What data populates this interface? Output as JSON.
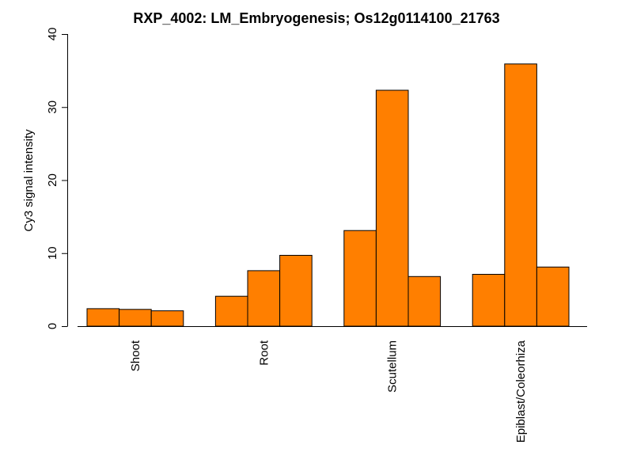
{
  "chart_data": {
    "type": "bar",
    "title": "RXP_4002: LM_Embryogenesis; Os12g0114100_21763",
    "xlabel": "",
    "ylabel": "Cy3 signal intensity",
    "ylim": [
      0,
      40
    ],
    "yticks": [
      0,
      10,
      20,
      30,
      40
    ],
    "categories": [
      "Shoot",
      "Root",
      "Scutellum",
      "Epiblast/Coleorhiza"
    ],
    "bars_per_group": 3,
    "values": [
      [
        2.4,
        2.3,
        2.1
      ],
      [
        4.1,
        7.6,
        9.7
      ],
      [
        13.1,
        32.3,
        6.8
      ],
      [
        7.1,
        35.9,
        8.1
      ]
    ],
    "bar_color": "#ff7f00",
    "bar_border_color": "#000000",
    "grid": false,
    "legend": "none"
  }
}
